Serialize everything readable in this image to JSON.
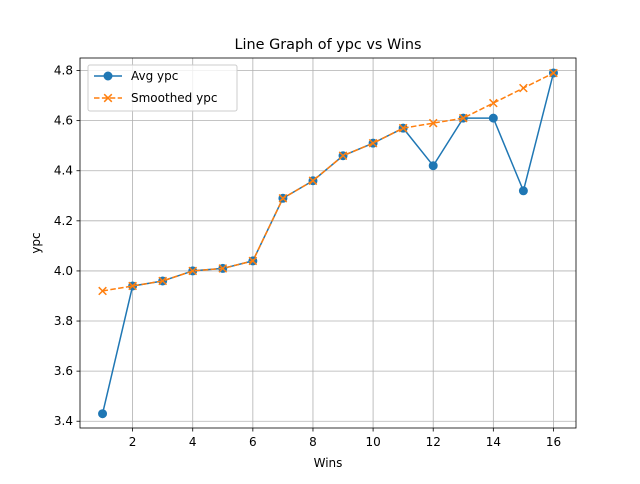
{
  "chart_data": {
    "type": "line",
    "title": "Line Graph of ypc vs Wins",
    "xlabel": "Wins",
    "ylabel": "ypc",
    "x": [
      1,
      2,
      3,
      4,
      5,
      6,
      7,
      8,
      9,
      10,
      11,
      12,
      13,
      14,
      15,
      16
    ],
    "xlim": [
      0.25,
      16.75
    ],
    "ylim": [
      3.373,
      4.85
    ],
    "xticks": [
      2,
      4,
      6,
      8,
      10,
      12,
      14,
      16
    ],
    "yticks": [
      3.4,
      3.6,
      3.8,
      4.0,
      4.2,
      4.4,
      4.6,
      4.8
    ],
    "xtick_labels": [
      "2",
      "4",
      "6",
      "8",
      "10",
      "12",
      "14",
      "16"
    ],
    "ytick_labels": [
      "3.4",
      "3.6",
      "3.8",
      "4.0",
      "4.2",
      "4.4",
      "4.6",
      "4.8"
    ],
    "grid": true,
    "legend_position": "top-left",
    "series": [
      {
        "name": "Avg ypc",
        "color": "#1f77b4",
        "marker": "circle",
        "line_style": "solid",
        "values": [
          3.43,
          3.94,
          3.96,
          4.0,
          4.01,
          4.04,
          4.29,
          4.36,
          4.46,
          4.51,
          4.57,
          4.42,
          4.61,
          4.61,
          4.32,
          4.79
        ]
      },
      {
        "name": "Smoothed ypc",
        "color": "#ff7f0e",
        "marker": "x",
        "line_style": "dashed",
        "values": [
          3.92,
          3.94,
          3.96,
          4.0,
          4.01,
          4.04,
          4.29,
          4.36,
          4.46,
          4.51,
          4.57,
          4.59,
          4.61,
          4.67,
          4.73,
          4.79
        ]
      }
    ]
  }
}
